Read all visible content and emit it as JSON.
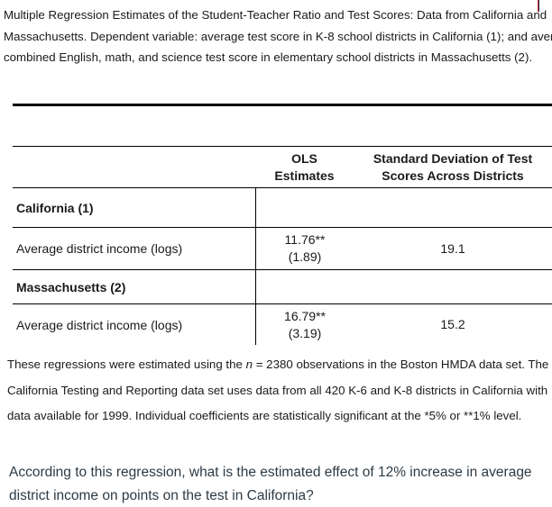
{
  "title": {
    "lines": [
      "Multiple Regression Estimates of the Student-Teacher Ratio and Test Scores: Data from California and",
      "Massachusetts. Dependent variable: average test score in K-8 school districts in California (1); and avera",
      "combined English, math, and science test score in elementary school districts in Massachusetts (2)."
    ]
  },
  "table": {
    "header": {
      "col2_line1": "OLS",
      "col2_line2": "Estimates",
      "col3_line1": "Standard Deviation of Test",
      "col3_line2": "Scores Across Districts"
    },
    "rows": [
      {
        "label": "California (1)",
        "estimate": "",
        "se": "",
        "sd": ""
      },
      {
        "label": "Average district income (logs)",
        "estimate": "11.76**",
        "se": "(1.89)",
        "sd": "19.1"
      },
      {
        "label": "Massachusetts (2)",
        "estimate": "",
        "se": "",
        "sd": ""
      },
      {
        "label": "Average district income (logs)",
        "estimate": "16.79**",
        "se": "(3.19)",
        "sd": "15.2"
      }
    ]
  },
  "footnote": {
    "line1_pre": "These regressions were estimated using the ",
    "line1_italic": "n",
    "line1_post": " = 2380 observations in the Boston HMDA data set. The",
    "line2": "California Testing and Reporting data set uses data from all 420 K-6 and K-8 districts in California with",
    "line3": "data available for 1999. Individual coefficients are statistically significant at the *5% or **1% level."
  },
  "question": {
    "text": "According to this regression, what is the estimated effect of 12% increase in average district income on points on the test in California?"
  },
  "colors": {
    "artifact_red": "#d93025",
    "artifact_navy": "#1f2a5e",
    "question_text": "#2d3b45"
  }
}
